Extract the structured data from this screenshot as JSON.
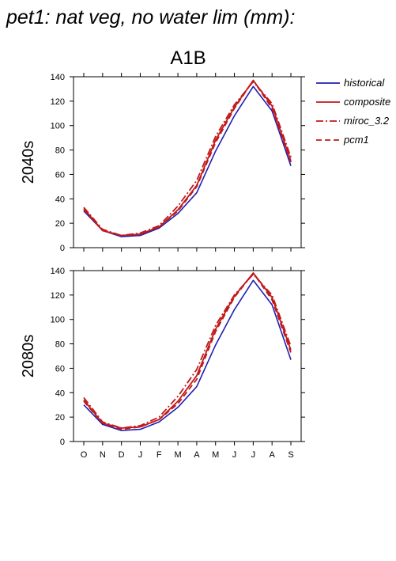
{
  "page_title": "pet1: nat veg, no water lim (mm):",
  "scenario": "A1B",
  "colors": {
    "historical": "#1f1fb4",
    "projection": "#c01a1a",
    "axis": "#000000"
  },
  "legend": [
    {
      "name": "historical",
      "style": "solid",
      "color": "#1f1fb4"
    },
    {
      "name": "composite",
      "style": "solid",
      "color": "#c01a1a"
    },
    {
      "name": "miroc_3.2",
      "style": "dashdot",
      "color": "#c01a1a"
    },
    {
      "name": "pcm1",
      "style": "dashed",
      "color": "#c01a1a"
    }
  ],
  "chart_data": [
    {
      "type": "line",
      "title": "A1B",
      "ylabel": "2040s",
      "categories": [
        "O",
        "N",
        "D",
        "J",
        "F",
        "M",
        "A",
        "M",
        "J",
        "J",
        "A",
        "S"
      ],
      "ylim": [
        0,
        140
      ],
      "yticks": [
        0,
        20,
        40,
        60,
        80,
        100,
        120,
        140
      ],
      "series": [
        {
          "name": "historical",
          "values": [
            30,
            14,
            9,
            10,
            16,
            28,
            45,
            79,
            108,
            132,
            112,
            67
          ]
        },
        {
          "name": "composite",
          "values": [
            32,
            14,
            10,
            11,
            17,
            31,
            51,
            88,
            115,
            137,
            116,
            71
          ]
        },
        {
          "name": "miroc_3.2",
          "values": [
            33,
            15,
            10,
            12,
            18,
            34,
            55,
            91,
            117,
            136,
            118,
            74
          ]
        },
        {
          "name": "pcm1",
          "values": [
            31,
            14,
            10,
            11,
            17,
            30,
            50,
            86,
            114,
            137,
            114,
            70
          ]
        }
      ]
    },
    {
      "type": "line",
      "title": "",
      "ylabel": "2080s",
      "categories": [
        "O",
        "N",
        "D",
        "J",
        "F",
        "M",
        "A",
        "M",
        "J",
        "J",
        "A",
        "S"
      ],
      "ylim": [
        0,
        140
      ],
      "yticks": [
        0,
        20,
        40,
        60,
        80,
        100,
        120,
        140
      ],
      "series": [
        {
          "name": "historical",
          "values": [
            30,
            14,
            9,
            10,
            16,
            28,
            45,
            79,
            108,
            132,
            112,
            67
          ]
        },
        {
          "name": "composite",
          "values": [
            34,
            15,
            11,
            12,
            18,
            33,
            54,
            92,
            119,
            138,
            118,
            75
          ]
        },
        {
          "name": "miroc_3.2",
          "values": [
            36,
            16,
            11,
            13,
            20,
            37,
            59,
            95,
            120,
            137,
            120,
            78
          ]
        },
        {
          "name": "pcm1",
          "values": [
            33,
            15,
            10,
            12,
            18,
            31,
            51,
            90,
            118,
            138,
            116,
            73
          ]
        }
      ]
    }
  ]
}
